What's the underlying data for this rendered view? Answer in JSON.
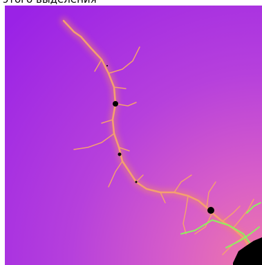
{
  "caption": "этого выделения"
}
